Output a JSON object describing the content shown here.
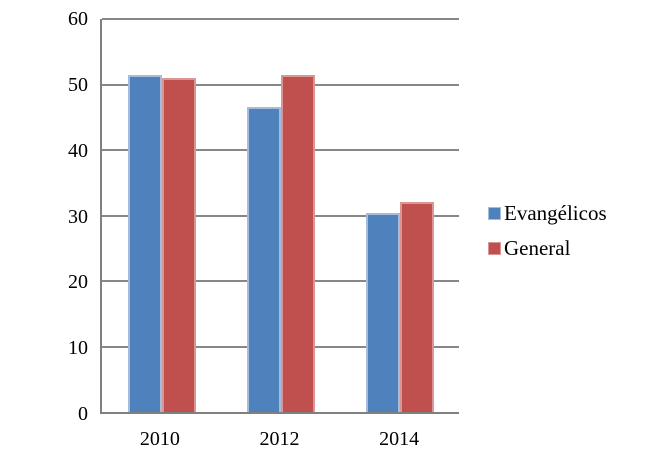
{
  "chart_data": {
    "type": "bar",
    "title": "",
    "xlabel": "",
    "ylabel": "",
    "categories": [
      "2010",
      "2012",
      "2014"
    ],
    "series": [
      {
        "name": "Evangélicos",
        "color": "#4f81bd",
        "border_color": "#a7bcdb",
        "values": [
          51.5,
          46.5,
          30.4
        ]
      },
      {
        "name": "General",
        "color": "#c0504d",
        "border_color": "#d99694",
        "values": [
          51.0,
          51.4,
          32.1
        ]
      }
    ],
    "ylim": [
      0,
      60
    ],
    "yticks": [
      0,
      10,
      20,
      30,
      40,
      50,
      60
    ],
    "grid": true,
    "legend_position": "right",
    "axis_color": "#808080",
    "gridline_color": "#878787",
    "background_color": "#ffffff"
  }
}
